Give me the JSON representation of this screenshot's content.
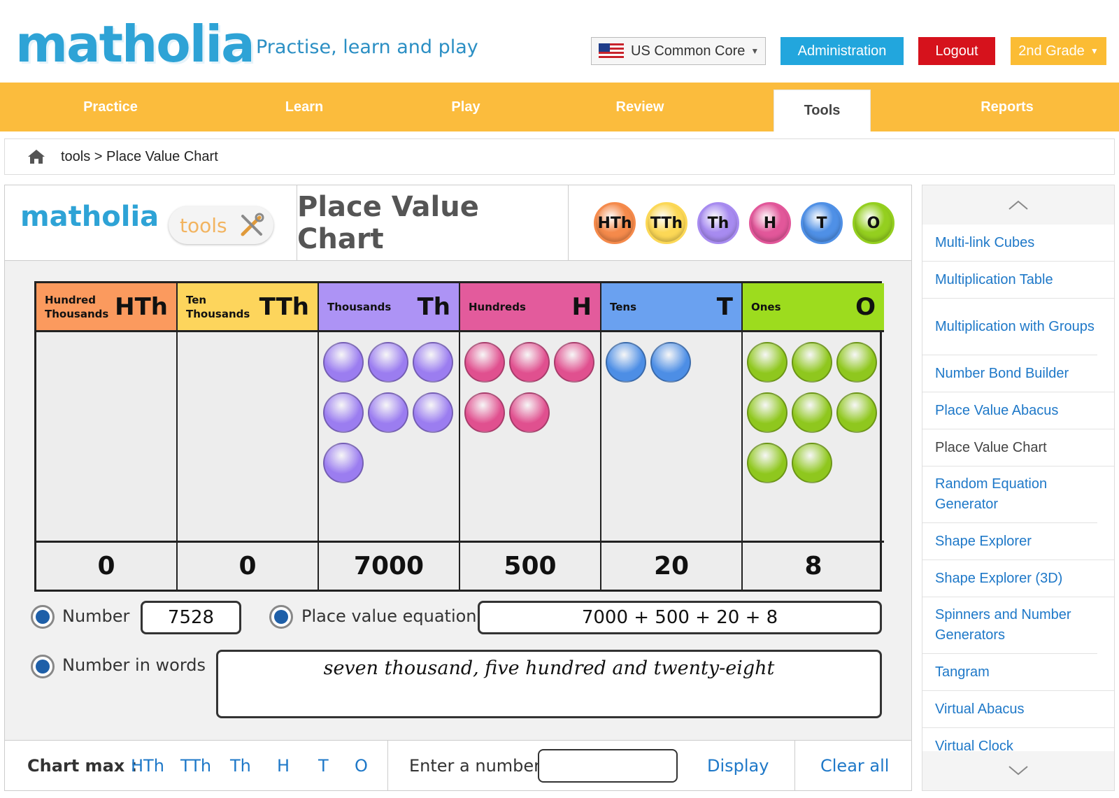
{
  "header": {
    "logo_text": "matholia",
    "tagline": "Practise, learn and play",
    "curriculum": "US Common Core",
    "admin_label": "Administration",
    "logout_label": "Logout",
    "grade_label": "2nd Grade"
  },
  "nav": {
    "items": [
      {
        "label": "Practice"
      },
      {
        "label": "Learn"
      },
      {
        "label": "Play"
      },
      {
        "label": "Review"
      },
      {
        "label": "Tools"
      },
      {
        "label": "Reports"
      }
    ],
    "active": "Tools"
  },
  "breadcrumb": {
    "text": "tools > Place Value Chart"
  },
  "tool": {
    "logo_text": "matholia",
    "badge_text": "tools",
    "title": "Place Value Chart",
    "legend": [
      {
        "abbr": "HTh",
        "color": "#f58a4b"
      },
      {
        "abbr": "TTh",
        "color": "#fcd856"
      },
      {
        "abbr": "Th",
        "color": "#a78bf0"
      },
      {
        "abbr": "H",
        "color": "#e2579a"
      },
      {
        "abbr": "T",
        "color": "#4f90e6"
      },
      {
        "abbr": "O",
        "color": "#94cf1f"
      }
    ],
    "columns": [
      {
        "name1": "Hundred",
        "name2": "Thousands",
        "abbr": "HTh",
        "value": "0",
        "count": 0,
        "head_color": "#fb9a5e",
        "ball_color": "#f58a4b"
      },
      {
        "name1": "Ten",
        "name2": "Thousands",
        "abbr": "TTh",
        "value": "0",
        "count": 0,
        "head_color": "#fdd55c",
        "ball_color": "#fcd856"
      },
      {
        "name1": "Thousands",
        "name2": "",
        "abbr": "Th",
        "value": "7000",
        "count": 7,
        "head_color": "#ad93f5",
        "ball_color": "#9b7df0"
      },
      {
        "name1": "Hundreds",
        "name2": "",
        "abbr": "H",
        "value": "500",
        "count": 5,
        "head_color": "#e35b9c",
        "ball_color": "#e0508f"
      },
      {
        "name1": "Tens",
        "name2": "",
        "abbr": "T",
        "value": "20",
        "count": 2,
        "head_color": "#6aa1f0",
        "ball_color": "#4d8ee5"
      },
      {
        "name1": "Ones",
        "name2": "",
        "abbr": "O",
        "value": "8",
        "count": 8,
        "head_color": "#9ddc1e",
        "ball_color": "#8fc71e"
      }
    ],
    "number_label": "Number",
    "number_value": "7528",
    "equation_label": "Place value equation",
    "equation_value": "7000 + 500 + 20 + 8",
    "words_label": "Number in words",
    "words_value": "seven thousand, five hundred and twenty-eight",
    "chart_max_label": "Chart max :",
    "chart_max_options": [
      "HTh",
      "TTh",
      "Th",
      "H",
      "T",
      "O"
    ],
    "enter_label": "Enter a number",
    "enter_value": "",
    "display_label": "Display",
    "clear_label": "Clear all"
  },
  "sidebar": {
    "items": [
      {
        "label": "Multi-link Cubes"
      },
      {
        "label": "Multiplication Table"
      },
      {
        "label": "Multiplication with Groups"
      },
      {
        "label": "Number Bond Builder"
      },
      {
        "label": "Place Value Abacus"
      },
      {
        "label": "Place Value Chart"
      },
      {
        "label": "Random Equation Generator"
      },
      {
        "label": "Shape Explorer"
      },
      {
        "label": "Shape Explorer (3D)"
      },
      {
        "label": "Spinners and Number Generators"
      },
      {
        "label": "Tangram"
      },
      {
        "label": "Virtual Abacus"
      },
      {
        "label": "Virtual Clock"
      }
    ],
    "current": "Place Value Chart"
  }
}
